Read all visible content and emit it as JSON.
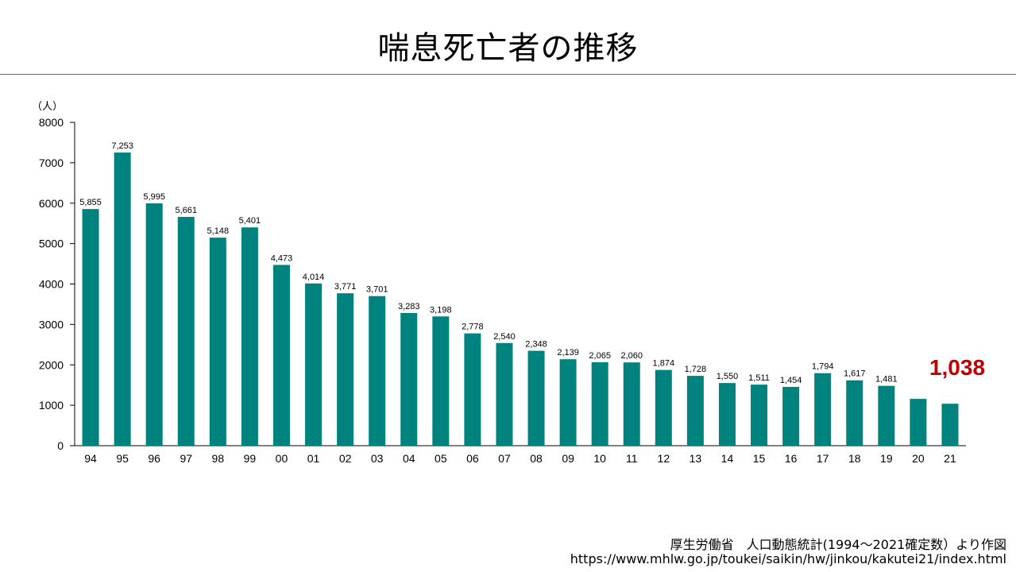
{
  "title": "喘息死亡者の推移",
  "source": {
    "line1": "厚生労働省　人口動態統計(1994～2021確定数）より作図",
    "line2": "https://www.mhlw.go.jp/toukei/saikin/hw/jinkou/kakutei21/index.html"
  },
  "colors": {
    "bar": "#00837f",
    "highlight": "#c00000",
    "axis": "#000000"
  },
  "chart_data": {
    "type": "bar",
    "title": "喘息死亡者の推移",
    "unit_label": "（人）",
    "xlabel": "",
    "ylabel": "",
    "ylim": [
      0,
      8000
    ],
    "yticks": [
      "0",
      "1000",
      "2000",
      "3000",
      "4000",
      "5000",
      "6000",
      "7000",
      "8000"
    ],
    "grid": false,
    "categories": [
      "94",
      "95",
      "96",
      "97",
      "98",
      "99",
      "00",
      "01",
      "02",
      "03",
      "04",
      "05",
      "06",
      "07",
      "08",
      "09",
      "10",
      "11",
      "12",
      "13",
      "14",
      "15",
      "16",
      "17",
      "18",
      "19",
      "20",
      "21"
    ],
    "values": [
      5855,
      7253,
      5995,
      5661,
      5148,
      5401,
      4473,
      4014,
      3771,
      3701,
      3283,
      3198,
      2778,
      2540,
      2348,
      2139,
      2065,
      2060,
      1874,
      1728,
      1550,
      1511,
      1454,
      1794,
      1617,
      1481,
      1158,
      1038
    ],
    "value_labels": [
      "5,855",
      "7,253",
      "5,995",
      "5,661",
      "5,148",
      "5,401",
      "4,473",
      "4,014",
      "3,771",
      "3,701",
      "3,283",
      "3,198",
      "2,778",
      "2,540",
      "2,348",
      "2,139",
      "2,065",
      "2,060",
      "1,874",
      "1,728",
      "1,550",
      "1,511",
      "1,454",
      "1,794",
      "1,617",
      "1,481",
      "",
      ""
    ],
    "highlight_label": "1,038"
  }
}
